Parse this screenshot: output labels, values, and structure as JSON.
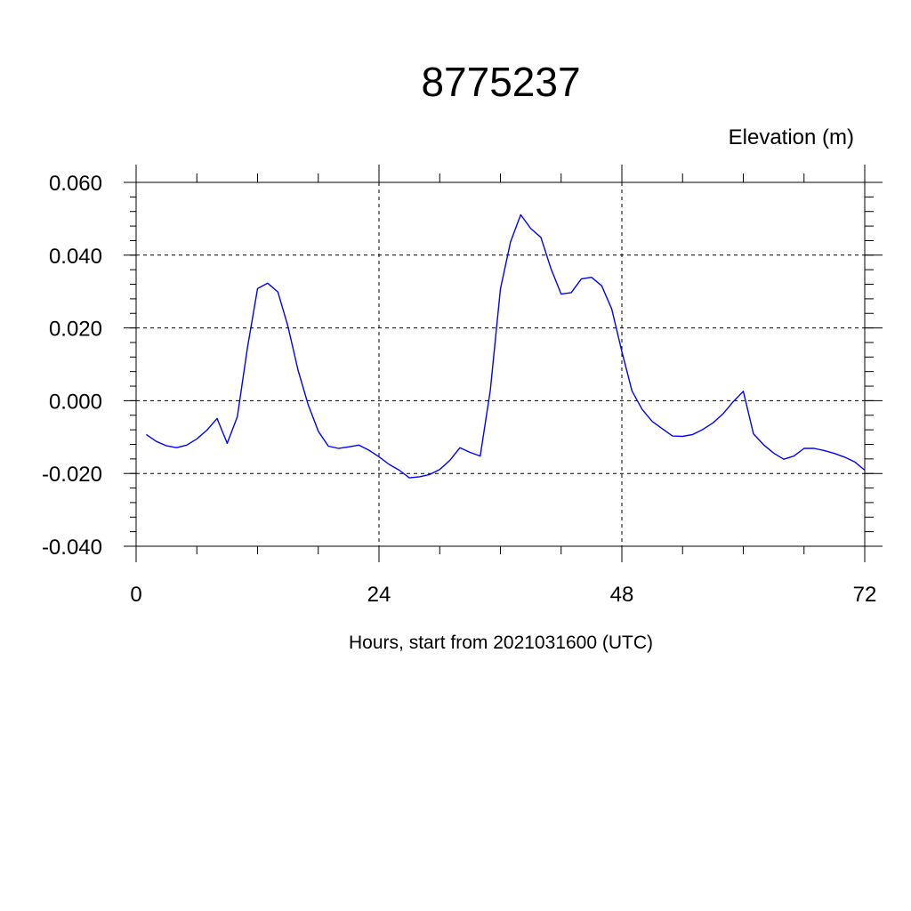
{
  "chart_data": {
    "type": "line",
    "title": "8775237",
    "units_label": "Elevation (m)",
    "xlabel": "Hours, start from 2021031600 (UTC)",
    "ylabel": "",
    "xlim": [
      0,
      72
    ],
    "ylim": [
      -0.04,
      0.06
    ],
    "x_ticks": [
      0,
      24,
      48,
      72
    ],
    "x_tick_labels": [
      "0",
      "24",
      "48",
      "72"
    ],
    "y_ticks": [
      -0.04,
      -0.02,
      0.0,
      0.02,
      0.04,
      0.06
    ],
    "y_tick_labels": [
      "-0.040",
      "-0.020",
      "0.000",
      "0.020",
      "0.040",
      "0.060"
    ],
    "grid": true,
    "line_color": "#0000ff",
    "series": [
      {
        "x": [
          1,
          2,
          3,
          4,
          5,
          6,
          7,
          8,
          9,
          10,
          11,
          12,
          13,
          14,
          15,
          16,
          17,
          18,
          19,
          20,
          21,
          22,
          23,
          24,
          25,
          26,
          27,
          28,
          29,
          30,
          31,
          32,
          33,
          34,
          35,
          36,
          37,
          38,
          39,
          40,
          41,
          42,
          43,
          44,
          45,
          46,
          47,
          48,
          49,
          50,
          51,
          52,
          53,
          54,
          55,
          56,
          57,
          58,
          59,
          60,
          61,
          62,
          63,
          64,
          65,
          66,
          67,
          68,
          69,
          70,
          71,
          72
        ],
        "values": [
          -0.0093,
          -0.0112,
          -0.0124,
          -0.0129,
          -0.0122,
          -0.0105,
          -0.0081,
          -0.0049,
          -0.0117,
          -0.0044,
          0.0145,
          0.0308,
          0.0323,
          0.0299,
          0.0205,
          0.0084,
          -0.0011,
          -0.0084,
          -0.0125,
          -0.0131,
          -0.0127,
          -0.0122,
          -0.0136,
          -0.0154,
          -0.0175,
          -0.0191,
          -0.0212,
          -0.0209,
          -0.0203,
          -0.0189,
          -0.0164,
          -0.0129,
          -0.0142,
          -0.0152,
          0.0028,
          0.0307,
          0.0437,
          0.0511,
          0.0473,
          0.0449,
          0.0362,
          0.0293,
          0.0297,
          0.0335,
          0.0339,
          0.0316,
          0.0252,
          0.0135,
          0.0027,
          -0.0024,
          -0.0057,
          -0.0077,
          -0.0097,
          -0.0098,
          -0.0093,
          -0.0079,
          -0.0061,
          -0.0036,
          -0.0003,
          0.0026,
          -0.0091,
          -0.0121,
          -0.0144,
          -0.0161,
          -0.0152,
          -0.0131,
          -0.0131,
          -0.0137,
          -0.0145,
          -0.0155,
          -0.0168,
          -0.0191
        ]
      }
    ]
  }
}
